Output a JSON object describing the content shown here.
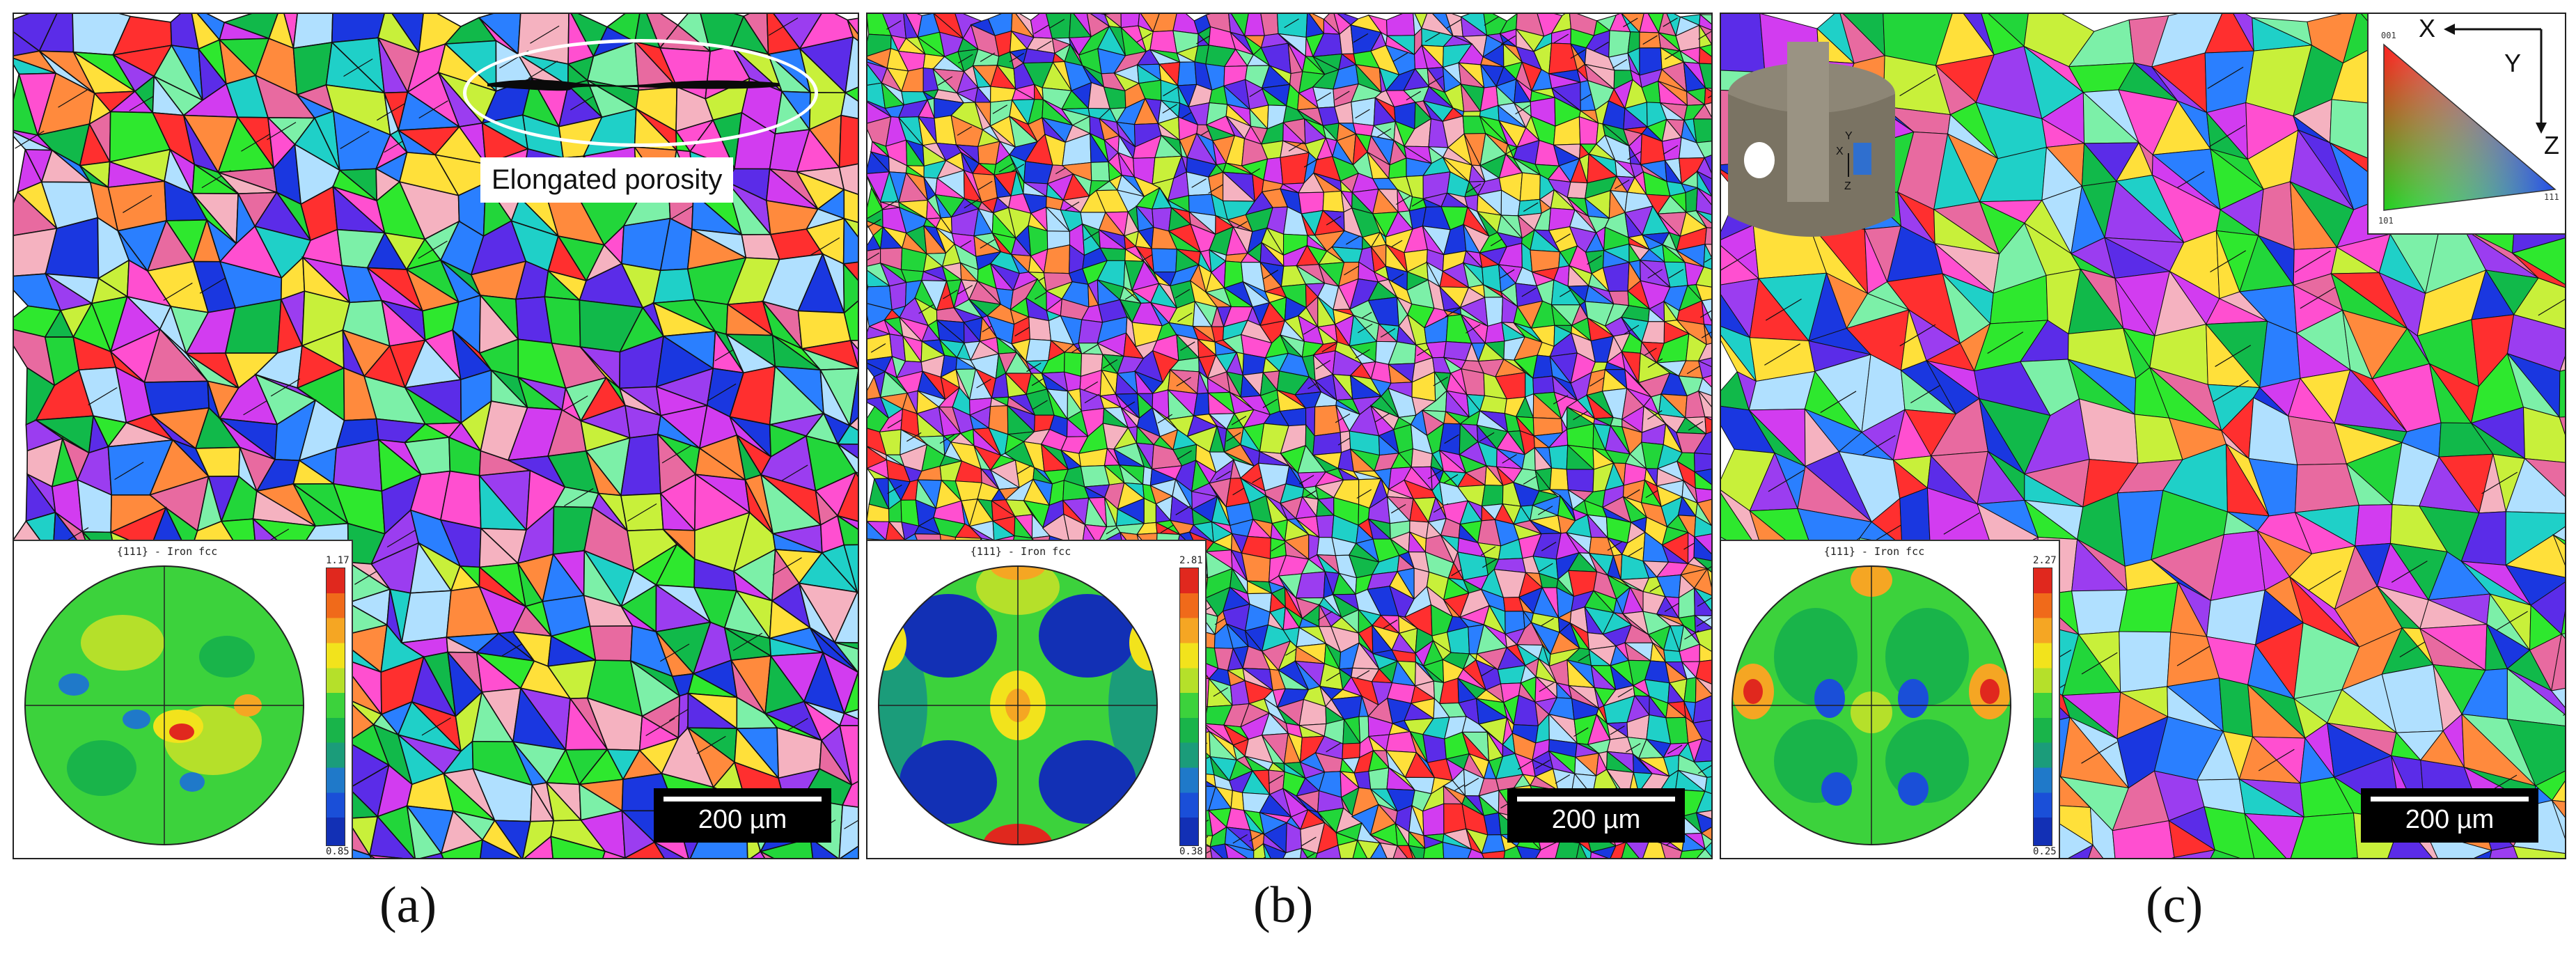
{
  "panels": [
    {
      "id": "a",
      "caption": "(a)",
      "pole_figure_title": "{111} - Iron fcc",
      "colorbar_max": "1.17",
      "colorbar_min": "0.85",
      "scale_bar": "200 µm",
      "annotation": "Elongated porosity",
      "grain_size": "coarse"
    },
    {
      "id": "b",
      "caption": "(b)",
      "pole_figure_title": "{111} - Iron fcc",
      "colorbar_max": "2.81",
      "colorbar_min": "0.38",
      "scale_bar": "200 µm",
      "grain_size": "fine"
    },
    {
      "id": "c",
      "caption": "(c)",
      "pole_figure_title": "{111} - Iron fcc",
      "colorbar_max": "2.27",
      "colorbar_min": "0.25",
      "scale_bar": "200 µm",
      "grain_size": "coarse",
      "axes": {
        "x": "X",
        "y": "Y",
        "z": "Z"
      },
      "inset_axes": {
        "x": "X",
        "y": "Y",
        "z": "Z"
      },
      "ipf_legend": {
        "top": "001",
        "bottom_left": "101",
        "bottom_right": "111"
      }
    }
  ],
  "colors": {
    "ipf_palette": [
      "#2ee82e",
      "#22d63a",
      "#11b94a",
      "#1fd0c8",
      "#2a7fff",
      "#1a37e0",
      "#5b2ce8",
      "#9b3df0",
      "#d23cf0",
      "#ff4fd0",
      "#ff2f2f",
      "#ff8a3d",
      "#ffe03a",
      "#c8f03a",
      "#f5b2c0",
      "#b0e0ff",
      "#7cf0a8",
      "#e86aa0"
    ],
    "boundary": "#111111",
    "scale_bar_bg": "#000000"
  }
}
